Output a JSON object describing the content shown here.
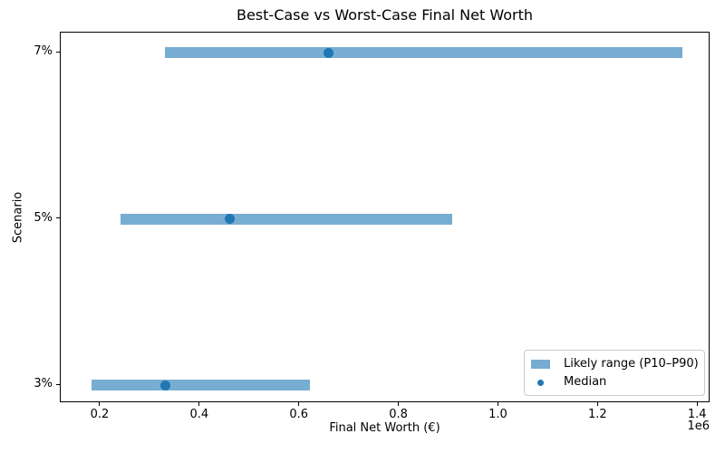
{
  "chart_data": {
    "type": "bar",
    "orientation": "horizontal",
    "title": "Best-Case vs Worst-Case Final Net Worth",
    "xlabel": "Final Net Worth (€)",
    "ylabel": "Scenario",
    "x_offset_label": "1e6",
    "categories": [
      "7%",
      "5%",
      "3%"
    ],
    "series": [
      {
        "name": "Likely range (P10–P90)",
        "type": "range_bar",
        "p10": [
          329000,
          240000,
          182000
        ],
        "p90": [
          1369000,
          906000,
          620000
        ]
      },
      {
        "name": "Median",
        "type": "dot",
        "values": [
          658000,
          460000,
          330000
        ]
      }
    ],
    "xlim": [
      120000,
      1425000
    ],
    "xticks": [
      200000,
      400000,
      600000,
      800000,
      1000000,
      1200000,
      1400000
    ],
    "xtick_labels": [
      "0.2",
      "0.4",
      "0.6",
      "0.8",
      "1.0",
      "1.2",
      "1.4"
    ],
    "grid": false,
    "legend": {
      "position": "lower-right",
      "entries": [
        {
          "label": "Likely range (P10–P90)",
          "marker": "bar"
        },
        {
          "label": "Median",
          "marker": "dot"
        }
      ]
    },
    "colors": {
      "range_bar": "#78add2",
      "median": "#1f77b4"
    }
  }
}
